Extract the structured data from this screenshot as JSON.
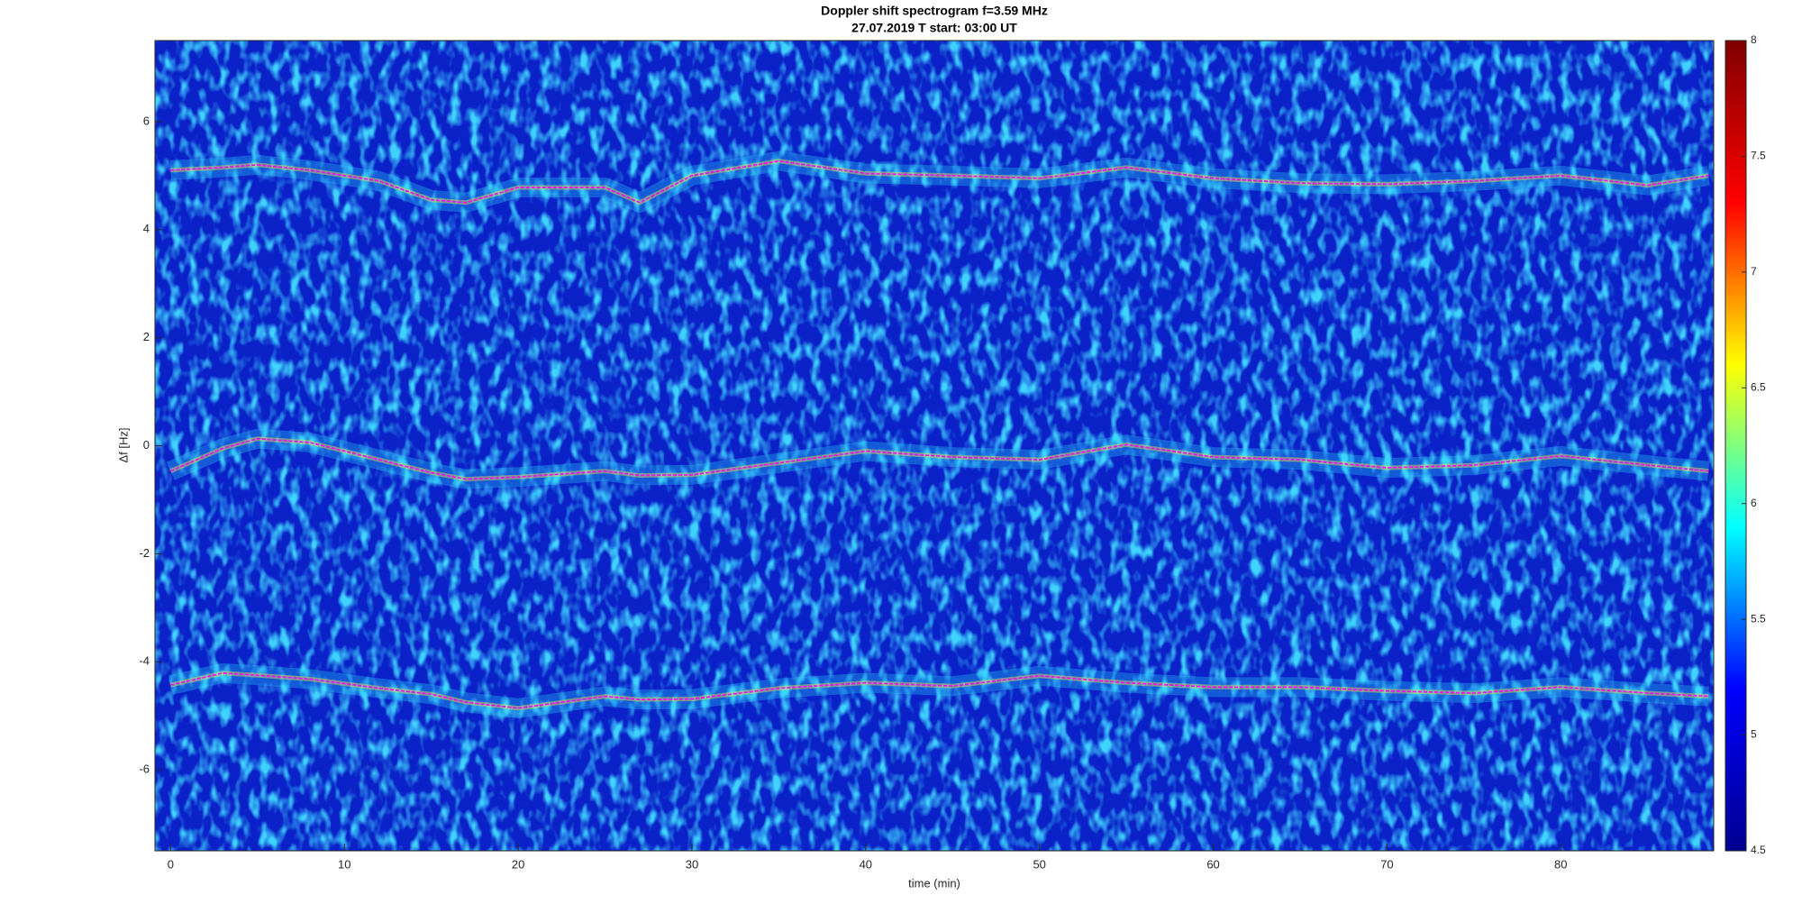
{
  "chart_data": {
    "type": "spectrogram",
    "title": "Doppler shift spectrogram f=3.59 MHz",
    "subtitle": "27.07.2019   T start: 03:00 UT",
    "xlabel": "time (min)",
    "ylabel": "Δf [Hz]",
    "xlim": [
      -0.9,
      88.8
    ],
    "xticks": [
      0,
      10,
      20,
      30,
      40,
      50,
      60,
      70,
      80
    ],
    "ylim": [
      -7.5,
      7.5
    ],
    "yticks": [
      -6,
      -4,
      -2,
      0,
      2,
      4,
      6
    ],
    "clim": [
      4.5,
      8
    ],
    "cticks": [
      4.5,
      5,
      5.5,
      6,
      6.5,
      7,
      7.5,
      8
    ],
    "colormap": [
      "#00008f",
      "#0000ff",
      "#00ffff",
      "#ffff00",
      "#ff0000",
      "#800000"
    ],
    "x": [
      0,
      3,
      5,
      8,
      12,
      15,
      17,
      20,
      25,
      27,
      30,
      35,
      40,
      45,
      50,
      55,
      60,
      65,
      70,
      75,
      80,
      85,
      88.5
    ],
    "series": [
      {
        "color": "#ff00ff",
        "values": [
          5.1,
          5.15,
          5.2,
          5.1,
          4.9,
          4.55,
          4.5,
          4.78,
          4.78,
          4.5,
          5.0,
          5.27,
          5.04,
          5.0,
          4.95,
          5.15,
          4.95,
          4.86,
          4.84,
          4.9,
          5.0,
          4.82,
          5.0
        ]
      },
      {
        "color": "#ff00ff",
        "values": [
          -0.47,
          -0.05,
          0.13,
          0.06,
          -0.26,
          -0.5,
          -0.62,
          -0.58,
          -0.47,
          -0.55,
          -0.54,
          -0.32,
          -0.1,
          -0.21,
          -0.26,
          0.02,
          -0.21,
          -0.26,
          -0.41,
          -0.36,
          -0.19,
          -0.36,
          -0.47
        ]
      },
      {
        "color": "#ff00ff",
        "values": [
          -4.43,
          -4.21,
          -4.25,
          -4.32,
          -4.49,
          -4.6,
          -4.75,
          -4.86,
          -4.64,
          -4.7,
          -4.69,
          -4.49,
          -4.39,
          -4.45,
          -4.26,
          -4.39,
          -4.47,
          -4.47,
          -4.54,
          -4.58,
          -4.47,
          -4.58,
          -4.64
        ]
      }
    ]
  }
}
